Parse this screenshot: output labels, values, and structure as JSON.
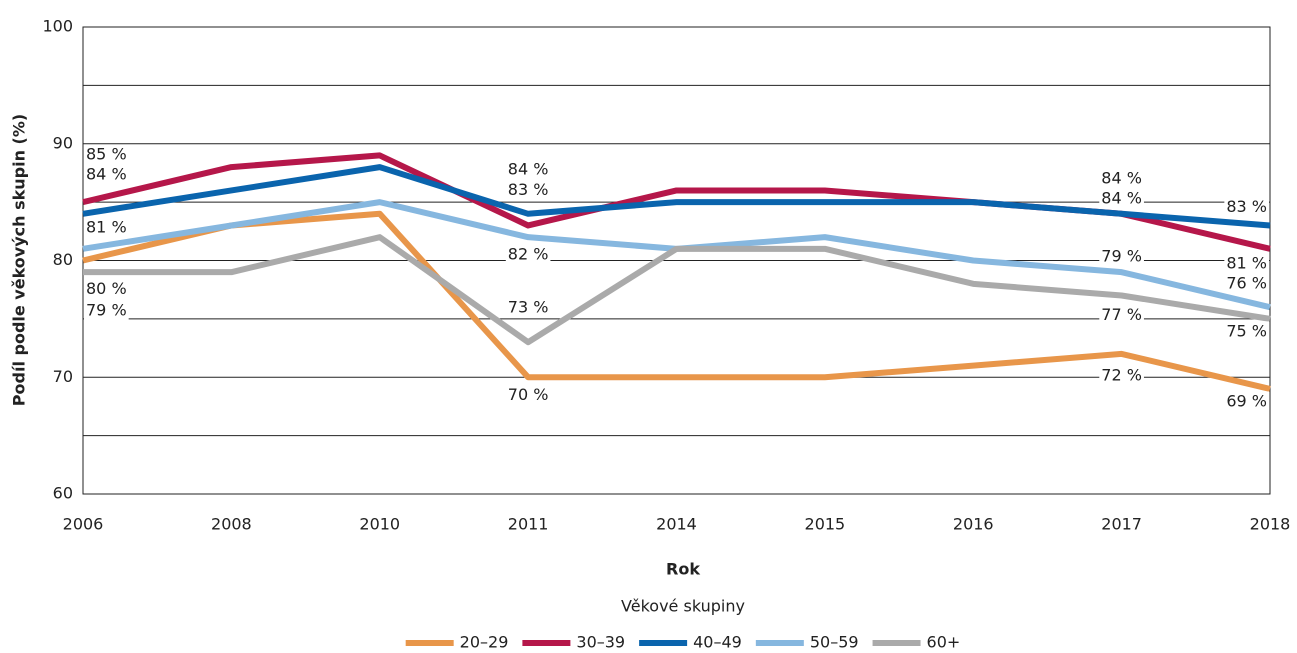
{
  "chart_data": {
    "type": "line",
    "x_label": "Rok",
    "y_label": "Podíl podle věkových skupin (%)",
    "legend_title": "Věkové skupiny",
    "legend": "bottom",
    "categories": [
      "2006",
      "2008",
      "2010",
      "2011",
      "2014",
      "2015",
      "2016",
      "2017",
      "2018"
    ],
    "ylim": [
      60,
      100
    ],
    "yticks": [
      60,
      70,
      80,
      90,
      100
    ],
    "minor_yticks": [
      65,
      75,
      85,
      95
    ],
    "grid": true,
    "series": [
      {
        "name": "20–29",
        "color": "#e8964a",
        "values": [
          80,
          83,
          84,
          70,
          70,
          70,
          71,
          72,
          69
        ],
        "value_labels": [
          "80 %",
          null,
          null,
          "70 %",
          null,
          null,
          null,
          "72 %",
          "69 %"
        ]
      },
      {
        "name": "30–39",
        "color": "#b5174a",
        "values": [
          85,
          88,
          89,
          83,
          86,
          86,
          85,
          84,
          81
        ],
        "value_labels": [
          "85 %",
          null,
          null,
          "83 %",
          null,
          null,
          null,
          "84 %",
          "81 %"
        ]
      },
      {
        "name": "40–49",
        "color": "#0a64ad",
        "values": [
          84,
          86,
          88,
          84,
          85,
          85,
          85,
          84,
          83
        ],
        "value_labels": [
          "84 %",
          null,
          null,
          "84 %",
          null,
          null,
          null,
          "84 %",
          "83 %"
        ]
      },
      {
        "name": "50–59",
        "color": "#86b7df",
        "values": [
          81,
          83,
          85,
          82,
          81,
          82,
          80,
          79,
          76
        ],
        "value_labels": [
          "81 %",
          null,
          null,
          "82 %",
          null,
          null,
          null,
          "79 %",
          "76 %"
        ]
      },
      {
        "name": "60+",
        "color": "#aaaaaa",
        "values": [
          79,
          79,
          82,
          73,
          81,
          81,
          78,
          77,
          75
        ],
        "value_labels": [
          "79 %",
          null,
          null,
          "73 %",
          null,
          null,
          null,
          "77 %",
          "75 %"
        ]
      }
    ]
  }
}
